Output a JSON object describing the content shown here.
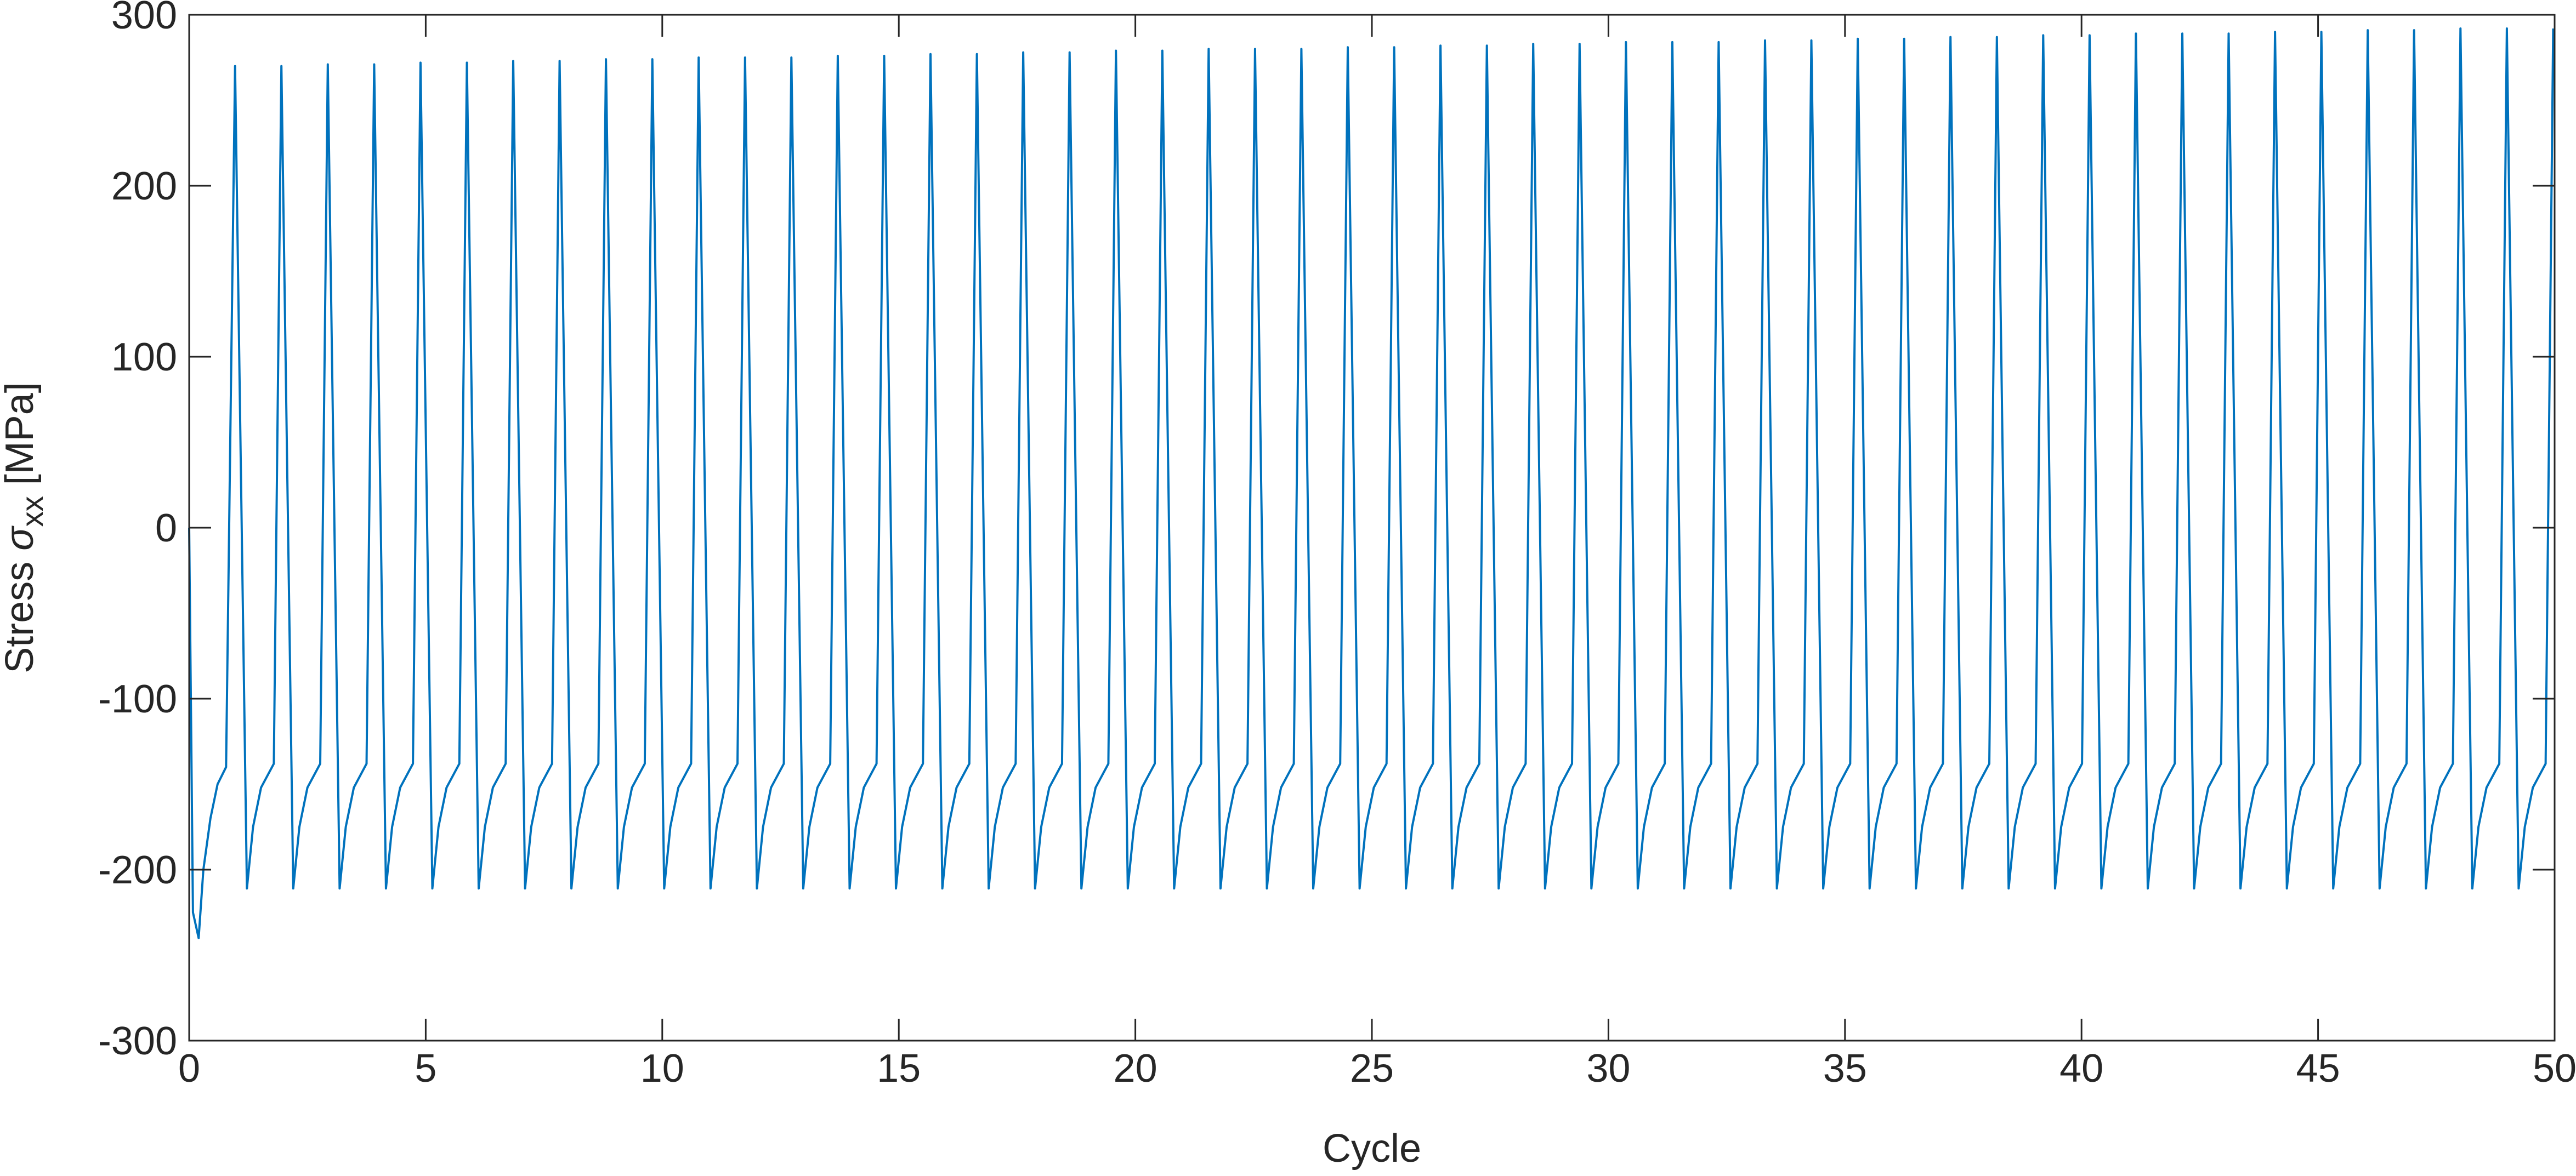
{
  "chart_data": {
    "type": "line",
    "xlabel": "Cycle",
    "ylabel": {
      "text": "Stress",
      "symbol": "σ",
      "subscript": "xx",
      "unit": "[MPa]"
    },
    "xlim": [
      0,
      50
    ],
    "xticks": [
      0,
      5,
      10,
      15,
      20,
      25,
      30,
      35,
      40,
      45,
      50
    ],
    "ylim": [
      -300,
      300
    ],
    "yticks": [
      -300,
      -200,
      -100,
      0,
      100,
      200,
      300
    ],
    "grid": false,
    "x": [
      0,
      0.08,
      0.2,
      0.3,
      0.45,
      0.6,
      0.78,
      0.97,
      1.22,
      1.35,
      1.52,
      1.79,
      1.95,
      2.2,
      2.33,
      2.5,
      2.77,
      2.93,
      3.18,
      3.31,
      3.48,
      3.75,
      3.91,
      4.16,
      4.29,
      4.46,
      4.73,
      4.89,
      5.14,
      5.27,
      5.44,
      5.71,
      5.87,
      6.12,
      6.25,
      6.42,
      6.69,
      6.85,
      7.1,
      7.23,
      7.4,
      7.67,
      7.83,
      8.08,
      8.21,
      8.38,
      8.65,
      8.81,
      9.06,
      9.19,
      9.36,
      9.63,
      9.79,
      10.04,
      10.17,
      10.34,
      10.61,
      10.77,
      11.02,
      11.15,
      11.32,
      11.59,
      11.75,
      12,
      12.13,
      12.3,
      12.57,
      12.73,
      12.98,
      13.11,
      13.28,
      13.55,
      13.71,
      13.96,
      14.09,
      14.26,
      14.53,
      14.69,
      14.94,
      15.07,
      15.24,
      15.51,
      15.67,
      15.92,
      16.05,
      16.22,
      16.49,
      16.65,
      16.9,
      17.03,
      17.2,
      17.47,
      17.63,
      17.88,
      18.01,
      18.18,
      18.45,
      18.61,
      18.86,
      18.99,
      19.16,
      19.43,
      19.59,
      19.84,
      19.97,
      20.14,
      20.41,
      20.57,
      20.82,
      20.95,
      21.12,
      21.39,
      21.55,
      21.8,
      21.93,
      22.1,
      22.37,
      22.53,
      22.78,
      22.91,
      23.08,
      23.35,
      23.51,
      23.76,
      23.89,
      24.06,
      24.33,
      24.49,
      24.74,
      24.87,
      25.04,
      25.31,
      25.47,
      25.72,
      25.85,
      26.02,
      26.29,
      26.45,
      26.7,
      26.83,
      27,
      27.27,
      27.43,
      27.68,
      27.81,
      27.98,
      28.25,
      28.41,
      28.66,
      28.79,
      28.96,
      29.23,
      29.39,
      29.64,
      29.77,
      29.94,
      30.21,
      30.37,
      30.62,
      30.75,
      30.92,
      31.19,
      31.35,
      31.6,
      31.73,
      31.9,
      32.17,
      32.33,
      32.58,
      32.71,
      32.88,
      33.15,
      33.31,
      33.56,
      33.69,
      33.86,
      34.13,
      34.29,
      34.54,
      34.67,
      34.84,
      35.11,
      35.27,
      35.52,
      35.65,
      35.82,
      36.09,
      36.25,
      36.5,
      36.63,
      36.8,
      37.07,
      37.23,
      37.48,
      37.61,
      37.78,
      38.05,
      38.21,
      38.46,
      38.59,
      38.76,
      39.03,
      39.19,
      39.44,
      39.57,
      39.74,
      40.01,
      40.17,
      40.42,
      40.55,
      40.72,
      40.99,
      41.15,
      41.4,
      41.53,
      41.7,
      41.97,
      42.13,
      42.38,
      42.51,
      42.68,
      42.95,
      43.11,
      43.36,
      43.49,
      43.66,
      43.93,
      44.09,
      44.34,
      44.47,
      44.64,
      44.91,
      45.07,
      45.32,
      45.45,
      45.62,
      45.89,
      46.05,
      46.3,
      46.43,
      46.6,
      46.87,
      47.03,
      47.28,
      47.41,
      47.58,
      47.85,
      48.01,
      48.26,
      48.39,
      48.56,
      48.83,
      48.99,
      49.24,
      49.37,
      49.54,
      49.81,
      49.97
    ],
    "series": [
      {
        "color": "#0072bd",
        "values": [
          0,
          -225,
          -240,
          -200,
          -170,
          -150,
          -140,
          270,
          -211,
          -175,
          -152,
          -138,
          270,
          -211,
          -175,
          -152,
          -138,
          271,
          -211,
          -175,
          -152,
          -138,
          271,
          -211,
          -175,
          -152,
          -138,
          272,
          -211,
          -175,
          -152,
          -138,
          272,
          -211,
          -175,
          -152,
          -138,
          273,
          -211,
          -175,
          -152,
          -138,
          273,
          -211,
          -175,
          -152,
          -138,
          274,
          -211,
          -175,
          -152,
          -138,
          274,
          -211,
          -175,
          -152,
          -138,
          275,
          -211,
          -175,
          -152,
          -138,
          275,
          -211,
          -175,
          -152,
          -138,
          275,
          -211,
          -175,
          -152,
          -138,
          276,
          -211,
          -175,
          -152,
          -138,
          276,
          -211,
          -175,
          -152,
          -138,
          277,
          -211,
          -175,
          -152,
          -138,
          277,
          -211,
          -175,
          -152,
          -138,
          278,
          -211,
          -175,
          -152,
          -138,
          278,
          -211,
          -175,
          -152,
          -138,
          279,
          -211,
          -175,
          -152,
          -138,
          279,
          -211,
          -175,
          -152,
          -138,
          280,
          -211,
          -175,
          -152,
          -138,
          280,
          -211,
          -175,
          -152,
          -138,
          280,
          -211,
          -175,
          -152,
          -138,
          281,
          -211,
          -175,
          -152,
          -138,
          281,
          -211,
          -175,
          -152,
          -138,
          282,
          -211,
          -175,
          -152,
          -138,
          282,
          -211,
          -175,
          -152,
          -138,
          283,
          -211,
          -175,
          -152,
          -138,
          283,
          -211,
          -175,
          -152,
          -138,
          284,
          -211,
          -175,
          -152,
          -138,
          284,
          -211,
          -175,
          -152,
          -138,
          284,
          -211,
          -175,
          -152,
          -138,
          285,
          -211,
          -175,
          -152,
          -138,
          285,
          -211,
          -175,
          -152,
          -138,
          286,
          -211,
          -175,
          -152,
          -138,
          286,
          -211,
          -175,
          -152,
          -138,
          287,
          -211,
          -175,
          -152,
          -138,
          287,
          -211,
          -175,
          -152,
          -138,
          288,
          -211,
          -175,
          -152,
          -138,
          288,
          -211,
          -175,
          -152,
          -138,
          289,
          -211,
          -175,
          -152,
          -138,
          289,
          -211,
          -175,
          -152,
          -138,
          289,
          -211,
          -175,
          -152,
          -138,
          290,
          -211,
          -175,
          -152,
          -138,
          290,
          -211,
          -175,
          -152,
          -138,
          291,
          -211,
          -175,
          -152,
          -138,
          291,
          -211,
          -175,
          -152,
          -138,
          292,
          -211,
          -175,
          -152,
          -138,
          292,
          -211,
          -175,
          -152,
          -138,
          292
        ]
      }
    ]
  }
}
